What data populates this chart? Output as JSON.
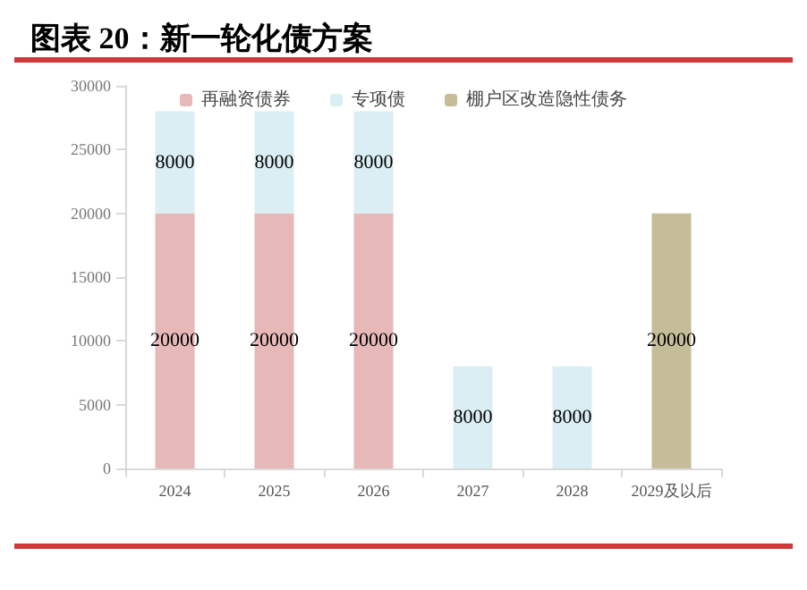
{
  "chart_data": {
    "type": "bar",
    "title": "图表 20：新一轮化债方案",
    "stacked": true,
    "data_labels": true,
    "legend": "top",
    "grid": false,
    "categories": [
      "2024",
      "2025",
      "2026",
      "2027",
      "2028",
      "2029及以后"
    ],
    "ylim": [
      0,
      30000
    ],
    "yticks": [
      0,
      5000,
      10000,
      15000,
      20000,
      25000,
      30000
    ],
    "series": [
      {
        "name": "再融资债券",
        "color": "#e6b8b7",
        "values": [
          20000,
          20000,
          20000,
          null,
          null,
          null
        ]
      },
      {
        "name": "专项债",
        "color": "#daeef3",
        "values": [
          8000,
          8000,
          8000,
          8000,
          8000,
          null
        ]
      },
      {
        "name": "棚户区改造隐性债务",
        "color": "#c4bd97",
        "values": [
          null,
          null,
          null,
          null,
          null,
          20000
        ]
      }
    ]
  }
}
